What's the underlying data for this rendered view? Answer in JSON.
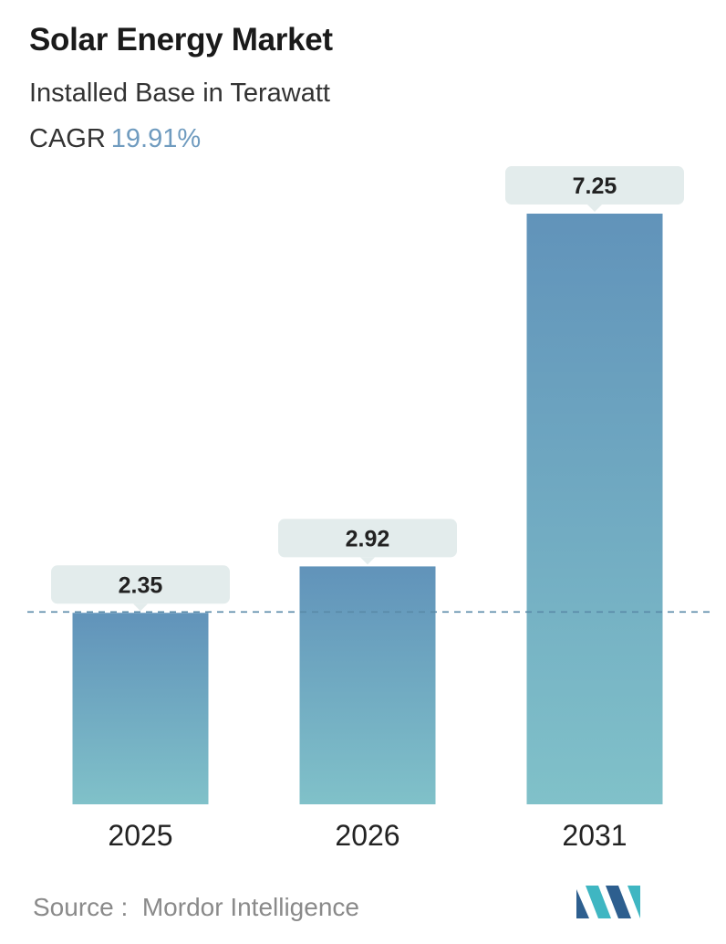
{
  "header": {
    "title": "Solar Energy Market",
    "subtitle": "Installed Base in Terawatt",
    "cagr_label": "CAGR",
    "cagr_value": "19.91%"
  },
  "footer": {
    "source_label": "Source :",
    "source_name": "Mordor Intelligence"
  },
  "colors": {
    "bar_top": "#6193ba",
    "bar_bottom": "#80c1c9",
    "label_box": "#e3ecec",
    "dashed_line": "#5a8aa8",
    "cagr_accent": "#6f9bbf",
    "logo_dark": "#2d5f8f",
    "logo_teal": "#3fb6c2"
  },
  "chart_data": {
    "type": "bar",
    "categories": [
      "2025",
      "2026",
      "2031"
    ],
    "values": [
      2.35,
      2.92,
      7.25
    ],
    "value_labels": [
      "2.35",
      "2.92",
      "7.25"
    ],
    "title": "Solar Energy Market",
    "subtitle": "Installed Base in Terawatt",
    "xlabel": "",
    "ylabel": "",
    "ylim": [
      0,
      7.25
    ],
    "reference_line": {
      "value": 2.35,
      "style": "dashed"
    },
    "grid": false,
    "legend": "none"
  }
}
